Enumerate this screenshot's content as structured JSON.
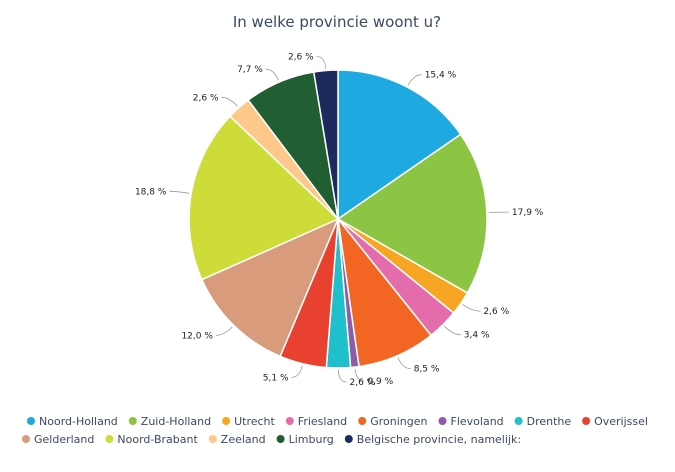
{
  "chart_data": {
    "type": "pie",
    "title": "In welke provincie woont u?",
    "legend_position": "bottom",
    "slices": [
      {
        "label": "Noord-Holland",
        "value": 15.4,
        "display": "15,4 %",
        "color": "#1fa9e1"
      },
      {
        "label": "Zuid-Holland",
        "value": 17.9,
        "display": "17,9 %",
        "color": "#8bc543"
      },
      {
        "label": "Utrecht",
        "value": 2.6,
        "display": "2,6 %",
        "color": "#f6a623"
      },
      {
        "label": "Friesland",
        "value": 3.4,
        "display": "3,4 %",
        "color": "#e46cac"
      },
      {
        "label": "Groningen",
        "value": 8.5,
        "display": "8,5 %",
        "color": "#f26522"
      },
      {
        "label": "Flevoland",
        "value": 0.9,
        "display": "0,9 %",
        "color": "#8e5ba7"
      },
      {
        "label": "Drenthe",
        "value": 2.6,
        "display": "2,6 %",
        "color": "#1fbfcc"
      },
      {
        "label": "Overijssel",
        "value": 5.1,
        "display": "5,1 %",
        "color": "#e8412f"
      },
      {
        "label": "Gelderland",
        "value": 12.0,
        "display": "12,0 %",
        "color": "#d89b7b"
      },
      {
        "label": "Noord-Brabant",
        "value": 18.8,
        "display": "18,8 %",
        "color": "#cddc39"
      },
      {
        "label": "Zeeland",
        "value": 2.6,
        "display": "2,6 %",
        "color": "#fcc98a"
      },
      {
        "label": "Limburg",
        "value": 7.7,
        "display": "7,7 %",
        "color": "#215e32"
      },
      {
        "label": "Belgische provincie, namelijk:",
        "value": 2.6,
        "display": "2,6 %",
        "color": "#1c2a5e"
      }
    ]
  }
}
